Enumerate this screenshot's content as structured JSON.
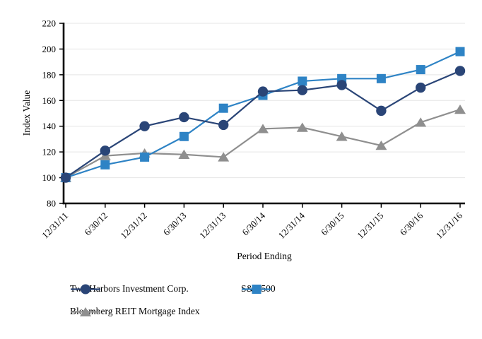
{
  "chart_data": {
    "type": "line",
    "title": "",
    "xlabel": "Period Ending",
    "ylabel": "Index Value",
    "ylim": [
      80,
      220
    ],
    "yticks": [
      80,
      100,
      120,
      140,
      160,
      180,
      200,
      220
    ],
    "grid": "horizontal",
    "legend_position": "bottom-left",
    "background_color": "#ffffff",
    "gridline_color": "#e5e5e5",
    "axis_color": "#000000",
    "text_color": "#000000",
    "categories": [
      "12/31/11",
      "6/30/12",
      "12/31/12",
      "6/30/13",
      "12/31/13",
      "6/30/14",
      "12/31/14",
      "6/30/15",
      "12/31/15",
      "6/30/16",
      "12/31/16"
    ],
    "series": [
      {
        "name": "Two Harbors Investment Corp.",
        "marker": "circle",
        "color": "#2a4577",
        "values": [
          100,
          121,
          140,
          147,
          141,
          167,
          168,
          172,
          152,
          170,
          183
        ]
      },
      {
        "name": "S&P 500",
        "marker": "square",
        "color": "#2e83c5",
        "values": [
          100,
          110,
          116,
          132,
          154,
          164,
          175,
          177,
          177,
          184,
          198
        ]
      },
      {
        "name": "Bloomberg REIT Mortgage Index",
        "marker": "triangle",
        "color": "#8f8f8f",
        "values": [
          100,
          117,
          119,
          118,
          116,
          138,
          139,
          132,
          125,
          143,
          153
        ]
      }
    ]
  }
}
